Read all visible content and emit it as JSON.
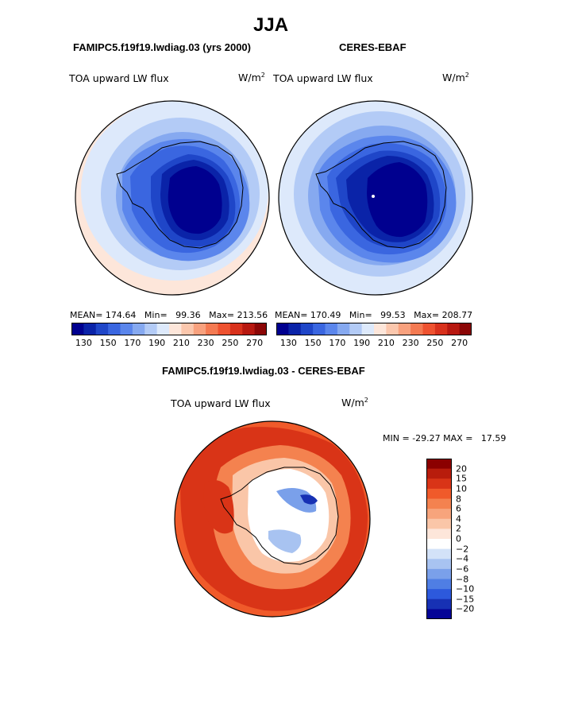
{
  "season": "JJA",
  "chart_data": [
    {
      "type": "heatmap",
      "projection": "south polar stereographic",
      "title": "FAMIPC5.f19f19.lwdiag.03 (yrs 2000)",
      "variable": "TOA upward LW flux",
      "units_base": "W/m",
      "units_exp": "2",
      "mean_label": "MEAN=",
      "mean": "174.64",
      "min_label": "Min=",
      "min": "99.36",
      "max_label": "Max=",
      "max": "213.56",
      "colorbar": {
        "colors": [
          "#00008f",
          "#0a23a8",
          "#1f46c8",
          "#3a66e0",
          "#5b86ec",
          "#86a9f0",
          "#b3cbf6",
          "#dde9fb",
          "#fde6da",
          "#fbc7ad",
          "#f8a17e",
          "#f47a52",
          "#ee5230",
          "#d8311c",
          "#b71810",
          "#8b0606"
        ],
        "ticks": [
          "130",
          "150",
          "170",
          "190",
          "210",
          "230",
          "250",
          "270"
        ]
      }
    },
    {
      "type": "heatmap",
      "projection": "south polar stereographic",
      "title": "CERES-EBAF",
      "variable": "TOA upward LW flux",
      "units_base": "W/m",
      "units_exp": "2",
      "mean_label": "MEAN=",
      "mean": "170.49",
      "min_label": "Min=",
      "min": "99.53",
      "max_label": "Max=",
      "max": "208.77",
      "colorbar": {
        "colors": [
          "#00008f",
          "#0a23a8",
          "#1f46c8",
          "#3a66e0",
          "#5b86ec",
          "#86a9f0",
          "#b3cbf6",
          "#dde9fb",
          "#fde6da",
          "#fbc7ad",
          "#f8a17e",
          "#f47a52",
          "#ee5230",
          "#d8311c",
          "#b71810",
          "#8b0606"
        ],
        "ticks": [
          "130",
          "150",
          "170",
          "190",
          "210",
          "230",
          "250",
          "270"
        ]
      }
    },
    {
      "type": "heatmap",
      "projection": "south polar stereographic",
      "title": "FAMIPC5.f19f19.lwdiag.03 - CERES-EBAF",
      "variable": "TOA upward LW flux",
      "units_base": "W/m",
      "units_exp": "2",
      "min_label": "MIN =",
      "min": "-29.27",
      "max_label": "MAX =",
      "max": "17.59",
      "colorbar": {
        "colors": [
          "#8b0000",
          "#b81c0c",
          "#d93417",
          "#f05a2a",
          "#f4824f",
          "#f7a47c",
          "#fac6a8",
          "#fde6da",
          "#ffffff",
          "#d3e2f8",
          "#a8c3f1",
          "#7aa0ea",
          "#4f7ee4",
          "#2d59dc",
          "#1731b4",
          "#050596"
        ],
        "ticks": [
          "20",
          "15",
          "10",
          "8",
          "6",
          "4",
          "2",
          "0",
          "−2",
          "−4",
          "−6",
          "−8",
          "−10",
          "−15",
          "−20"
        ]
      }
    }
  ]
}
